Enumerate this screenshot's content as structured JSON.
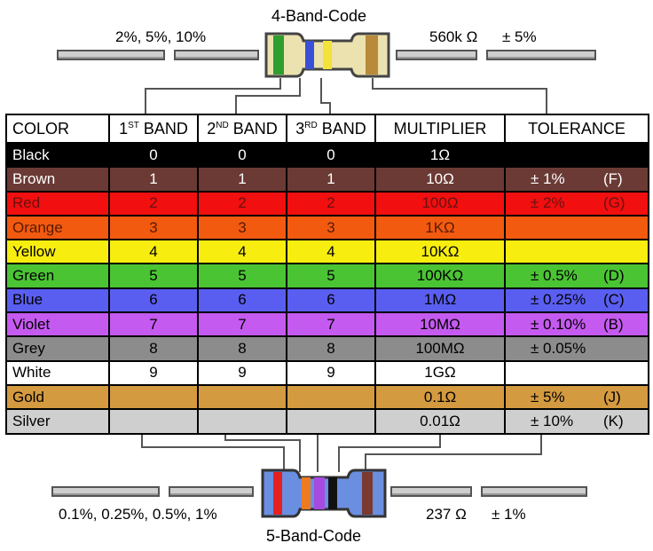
{
  "top": {
    "title": "4-Band-Code",
    "left_note": "2%, 5%, 10%",
    "right_value": "560k Ω",
    "right_tol": "± 5%",
    "bands": [
      "#2e9e2e",
      "#3a4fd8",
      "#f2e23a",
      "#b88a3a"
    ]
  },
  "bottom": {
    "title": "5-Band-Code",
    "left_note": "0.1%, 0.25%, 0.5%, 1%",
    "right_value": "237 Ω",
    "right_tol": "± 1%",
    "bands": [
      "#e52020",
      "#f07a20",
      "#a64ae0",
      "#111111",
      "#7a3a30"
    ]
  },
  "table": {
    "headers": {
      "color": "COLOR",
      "band1_pre": "1",
      "band1_sup": "ST",
      "band1_post": " BAND",
      "band2_pre": "2",
      "band2_sup": "ND",
      "band2_post": " BAND",
      "band3_pre": "3",
      "band3_sup": "RD",
      "band3_post": " BAND",
      "multiplier": "MULTIPLIER",
      "tolerance": "TOLERANCE"
    },
    "rows": [
      {
        "name": "Black",
        "b1": "0",
        "b2": "0",
        "b3": "0",
        "mult": "1Ω",
        "tol": "",
        "code": "",
        "bg": "#000000",
        "fg": "#ffffff"
      },
      {
        "name": "Brown",
        "b1": "1",
        "b2": "1",
        "b3": "1",
        "mult": "10Ω",
        "tol": "± 1%",
        "code": "(F)",
        "bg": "#6b3a35",
        "fg": "#ffffff"
      },
      {
        "name": "Red",
        "b1": "2",
        "b2": "2",
        "b3": "2",
        "mult": "100Ω",
        "tol": "± 2%",
        "code": "(G)",
        "bg": "#f20f0f",
        "fg": "#6a1010"
      },
      {
        "name": "Orange",
        "b1": "3",
        "b2": "3",
        "b3": "3",
        "mult": "1KΩ",
        "tol": "",
        "code": "",
        "bg": "#f25a10",
        "fg": "#5a1a00"
      },
      {
        "name": "Yellow",
        "b1": "4",
        "b2": "4",
        "b3": "4",
        "mult": "10KΩ",
        "tol": "",
        "code": "",
        "bg": "#f7ee10",
        "fg": "#000000"
      },
      {
        "name": "Green",
        "b1": "5",
        "b2": "5",
        "b3": "5",
        "mult": "100KΩ",
        "tol": "± 0.5%",
        "code": "(D)",
        "bg": "#4bc434",
        "fg": "#000000"
      },
      {
        "name": "Blue",
        "b1": "6",
        "b2": "6",
        "b3": "6",
        "mult": "1MΩ",
        "tol": "± 0.25%",
        "code": "(C)",
        "bg": "#5a5ef0",
        "fg": "#000000"
      },
      {
        "name": "Violet",
        "b1": "7",
        "b2": "7",
        "b3": "7",
        "mult": "10MΩ",
        "tol": "± 0.10%",
        "code": "(B)",
        "bg": "#c55af0",
        "fg": "#000000"
      },
      {
        "name": "Grey",
        "b1": "8",
        "b2": "8",
        "b3": "8",
        "mult": "100MΩ",
        "tol": "± 0.05%",
        "code": "",
        "bg": "#8c8c8c",
        "fg": "#000000"
      },
      {
        "name": "White",
        "b1": "9",
        "b2": "9",
        "b3": "9",
        "mult": "1GΩ",
        "tol": "",
        "code": "",
        "bg": "#ffffff",
        "fg": "#000000"
      },
      {
        "name": "Gold",
        "b1": "",
        "b2": "",
        "b3": "",
        "mult": "0.1Ω",
        "tol": "± 5%",
        "code": "(J)",
        "bg": "#d49a40",
        "fg": "#000000"
      },
      {
        "name": "Silver",
        "b1": "",
        "b2": "",
        "b3": "",
        "mult": "0.01Ω",
        "tol": "± 10%",
        "code": "(K)",
        "bg": "#cfcfcf",
        "fg": "#000000"
      }
    ]
  }
}
